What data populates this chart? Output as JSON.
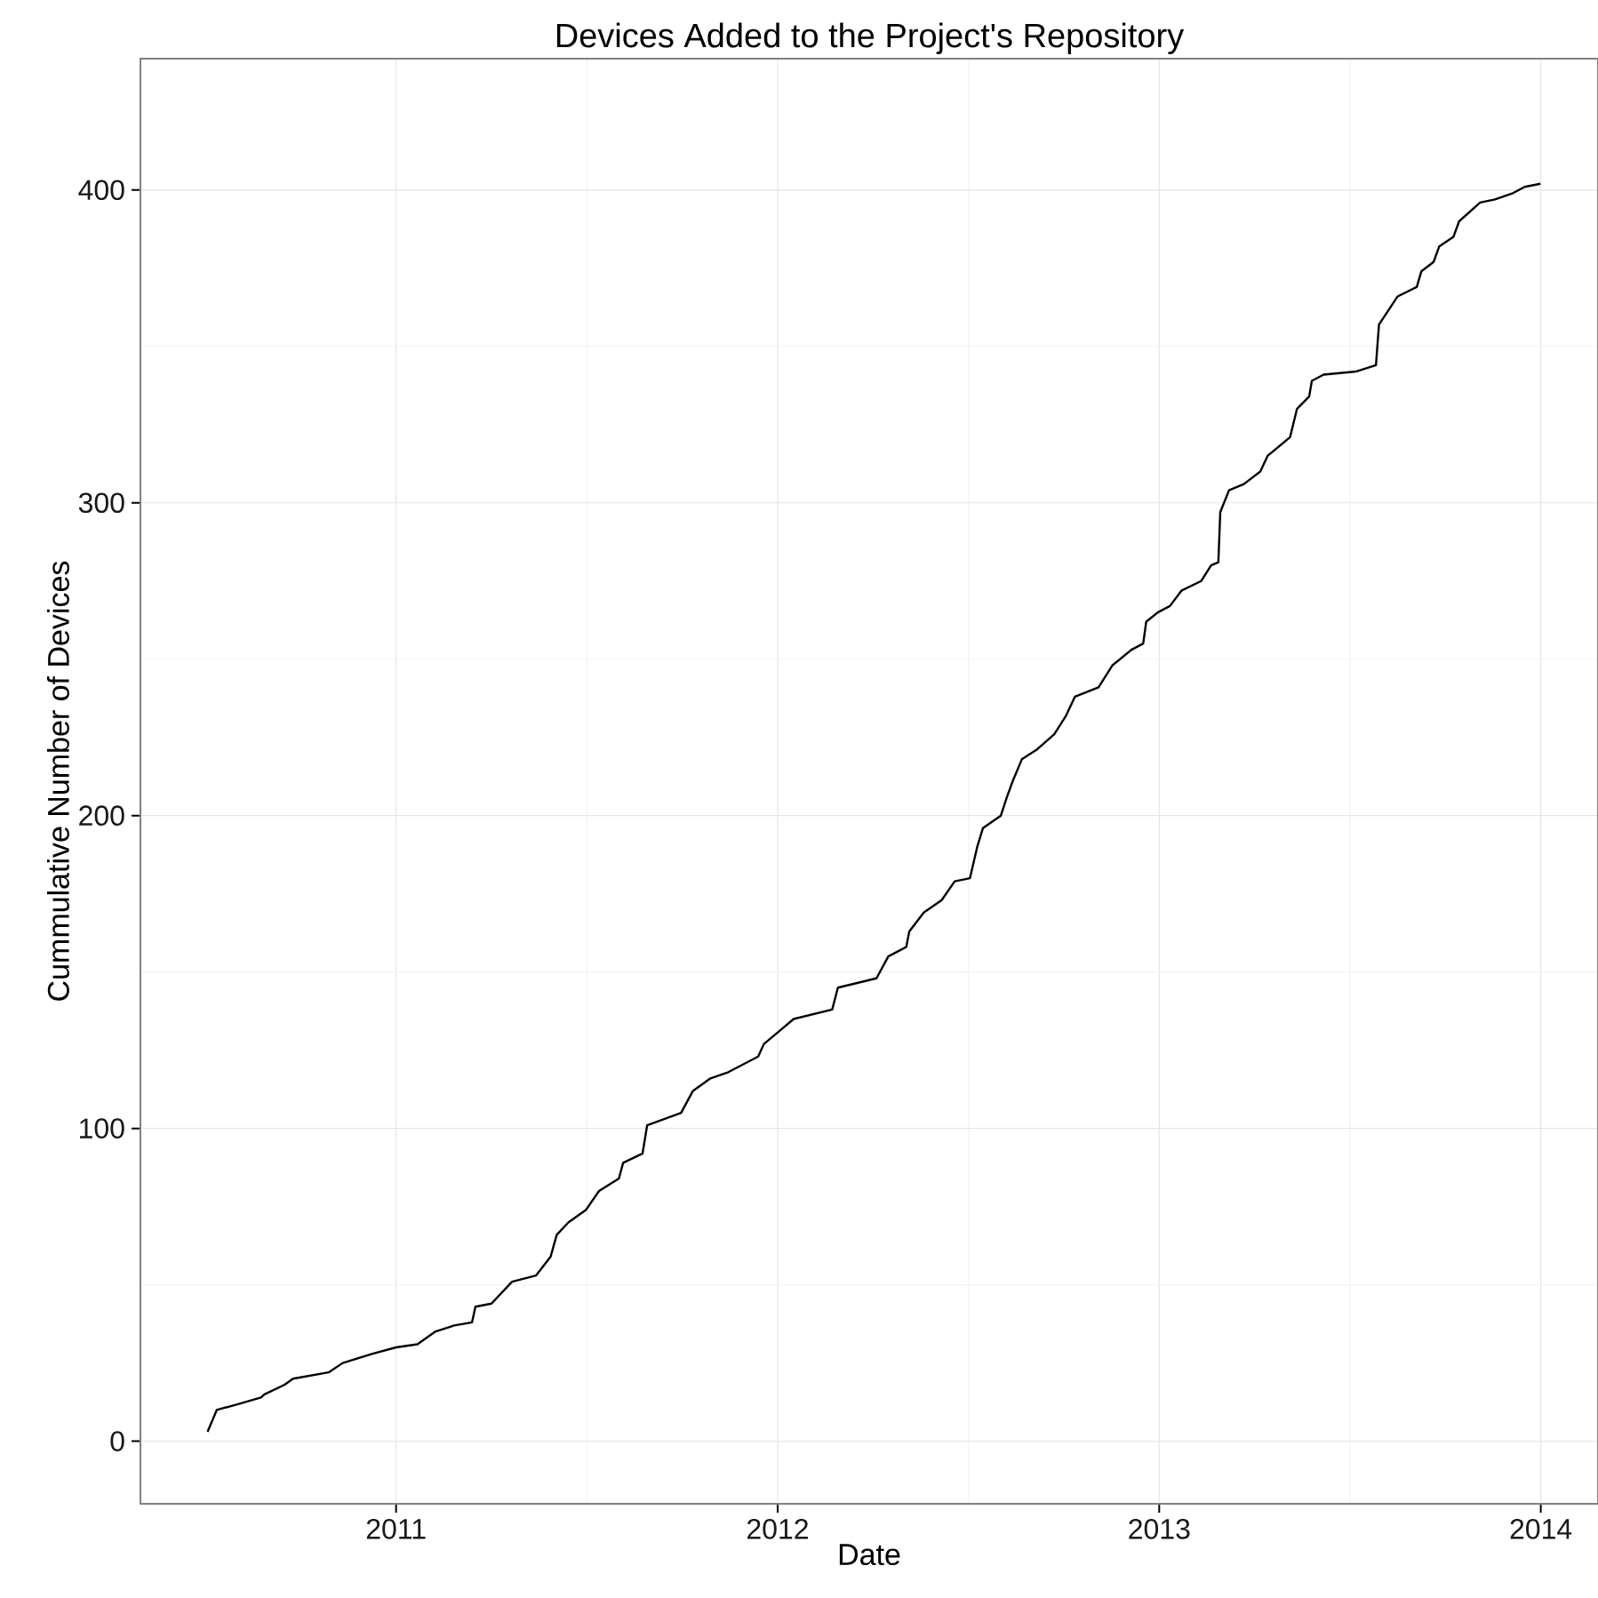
{
  "chart_data": {
    "type": "line",
    "title": "Devices Added to the Project's Repository",
    "xlabel": "Date",
    "ylabel": "Cummulative Number of Devices",
    "x": [
      2010.506,
      2010.53,
      2010.59,
      2010.646,
      2010.655,
      2010.707,
      2010.73,
      2010.823,
      2010.86,
      2010.939,
      2011.0,
      2011.056,
      2011.102,
      2011.152,
      2011.199,
      2011.208,
      2011.25,
      2011.304,
      2011.367,
      2011.405,
      2011.421,
      2011.452,
      2011.498,
      2011.532,
      2011.584,
      2011.595,
      2011.646,
      2011.658,
      2011.747,
      2011.778,
      2011.824,
      2011.871,
      2011.949,
      2011.964,
      2012.003,
      2012.042,
      2012.143,
      2012.158,
      2012.259,
      2012.29,
      2012.337,
      2012.345,
      2012.383,
      2012.43,
      2012.464,
      2012.504,
      2012.523,
      2012.538,
      2012.585,
      2012.601,
      2012.616,
      2012.64,
      2012.678,
      2012.725,
      2012.756,
      2012.779,
      2012.841,
      2012.877,
      2012.927,
      2012.958,
      2012.966,
      2012.997,
      2013.028,
      2013.059,
      2013.11,
      2013.136,
      2013.155,
      2013.16,
      2013.183,
      2013.222,
      2013.265,
      2013.284,
      2013.343,
      2013.361,
      2013.393,
      2013.4,
      2013.431,
      2013.517,
      2013.568,
      2013.576,
      2013.625,
      2013.675,
      2013.687,
      2013.719,
      2013.734,
      2013.771,
      2013.786,
      2013.841,
      2013.88,
      2013.927,
      2013.958,
      2013.999
    ],
    "values": [
      3,
      10,
      12,
      14,
      15,
      18,
      20,
      22,
      25,
      28,
      30,
      31,
      35,
      37,
      38,
      43,
      44,
      51,
      53,
      59,
      66,
      70,
      74,
      80,
      84,
      89,
      92,
      101,
      105,
      112,
      116,
      118,
      123,
      127,
      131,
      135,
      138,
      145,
      148,
      155,
      158,
      163,
      169,
      173,
      179,
      180,
      190,
      196,
      200,
      206,
      211,
      218,
      221,
      226,
      232,
      238,
      241,
      248,
      253,
      255,
      262,
      265,
      267,
      272,
      275,
      280,
      281,
      297,
      304,
      306,
      310,
      315,
      321,
      330,
      334,
      339,
      341,
      342,
      344,
      357,
      366,
      369,
      374,
      377,
      382,
      385,
      390,
      396,
      397,
      399,
      401,
      402
    ],
    "color": "#000000",
    "line_style": "solid",
    "marker": "none",
    "xlim": [
      2010.33,
      2014.15
    ],
    "ylim": [
      -20,
      442
    ],
    "xticks": [
      2011,
      2012,
      2013,
      2014
    ],
    "yticks": [
      0,
      100,
      200,
      300,
      400
    ],
    "grid": true
  }
}
